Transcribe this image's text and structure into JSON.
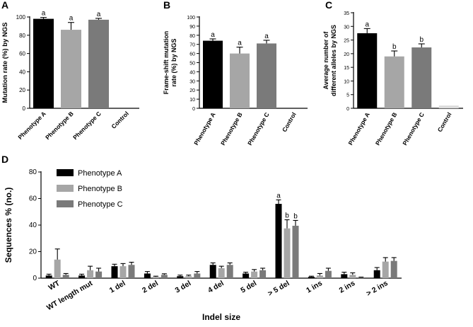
{
  "colors": {
    "phenotype_a": "#000000",
    "phenotype_b": "#a6a6a6",
    "phenotype_c": "#7a7a7a",
    "control": "#dcdcdc"
  },
  "chart_data": [
    {
      "id": "A",
      "type": "bar",
      "panel_label": "A",
      "categories": [
        "Phenotype A",
        "Phenotype B",
        "Phenotype C",
        "Control"
      ],
      "values": [
        98,
        86,
        97,
        0
      ],
      "errors": [
        1.5,
        8,
        1.5,
        0
      ],
      "letters": [
        "a",
        "a",
        "a",
        ""
      ],
      "ylabel": "Mutation rate (%) by NGS",
      "xlabel": "",
      "ylim": [
        0,
        100
      ],
      "yticks": [
        0,
        20,
        40,
        60,
        80,
        100
      ]
    },
    {
      "id": "B",
      "type": "bar",
      "panel_label": "B",
      "categories": [
        "Phenotype A",
        "Phenotype B",
        "Phenotype C",
        "Control"
      ],
      "values": [
        74,
        60,
        71,
        0
      ],
      "errors": [
        2,
        7,
        3.5,
        0
      ],
      "letters": [
        "a",
        "a",
        "a",
        ""
      ],
      "ylabel_lines": [
        "Frame-shift mutation",
        "rate (%) by NGS"
      ],
      "xlabel": "",
      "ylim": [
        0,
        100
      ],
      "yticks": [
        0,
        10,
        20,
        30,
        40,
        50,
        60,
        70,
        80,
        90,
        100
      ]
    },
    {
      "id": "C",
      "type": "bar",
      "panel_label": "C",
      "categories": [
        "Phenotype A",
        "Phenotype B",
        "Phenotype C",
        "Control"
      ],
      "values": [
        27.5,
        19,
        22.3,
        1
      ],
      "errors": [
        1.7,
        2,
        1.3,
        0
      ],
      "letters": [
        "a",
        "b",
        "b",
        ""
      ],
      "ylabel_lines": [
        "Average number of",
        "different alleles by NGS"
      ],
      "xlabel": "",
      "ylim": [
        0,
        35
      ],
      "yticks": [
        0,
        5,
        10,
        15,
        20,
        25,
        30,
        35
      ]
    },
    {
      "id": "D",
      "type": "bar",
      "panel_label": "D",
      "categories": [
        "WT",
        "WT length mut",
        "1 del",
        "2 del",
        "3 del",
        "4 del",
        "5 del",
        "> 5 del",
        "1 ins",
        "2 ins",
        "> 2 ins"
      ],
      "series": [
        {
          "name": "Phenotype A",
          "values": [
            2,
            2,
            9,
            3.5,
            1.5,
            10,
            3.5,
            56,
            1,
            3,
            6
          ],
          "errors": [
            1,
            1,
            1.5,
            1.5,
            0.8,
            1.5,
            1,
            3,
            0.5,
            1.5,
            2
          ]
        },
        {
          "name": "Phenotype B",
          "values": [
            14,
            6,
            9,
            1,
            1.5,
            7.5,
            5,
            37.5,
            2,
            2.5,
            12.5
          ],
          "errors": [
            8,
            3,
            2,
            0.5,
            0.8,
            1.5,
            1.5,
            6.5,
            1.5,
            1.5,
            3
          ]
        },
        {
          "name": "Phenotype C",
          "values": [
            2.5,
            5,
            10,
            2.5,
            3.5,
            10,
            6,
            39.5,
            5.5,
            0.5,
            13
          ],
          "errors": [
            1,
            2.5,
            2,
            0.8,
            1.5,
            1.5,
            1.5,
            4,
            2,
            0.3,
            2.5
          ]
        }
      ],
      "letters": {
        "> 5 del": [
          "a",
          "b",
          "b"
        ]
      },
      "ylabel": "Sequences % (no.)",
      "xlabel": "Indel size",
      "ylim": [
        0,
        80
      ],
      "yticks": [
        0,
        20,
        40,
        60,
        80
      ],
      "legend": [
        "Phenotype A",
        "Phenotype B",
        "Phenotype C"
      ],
      "legend_position": "top-left"
    }
  ]
}
